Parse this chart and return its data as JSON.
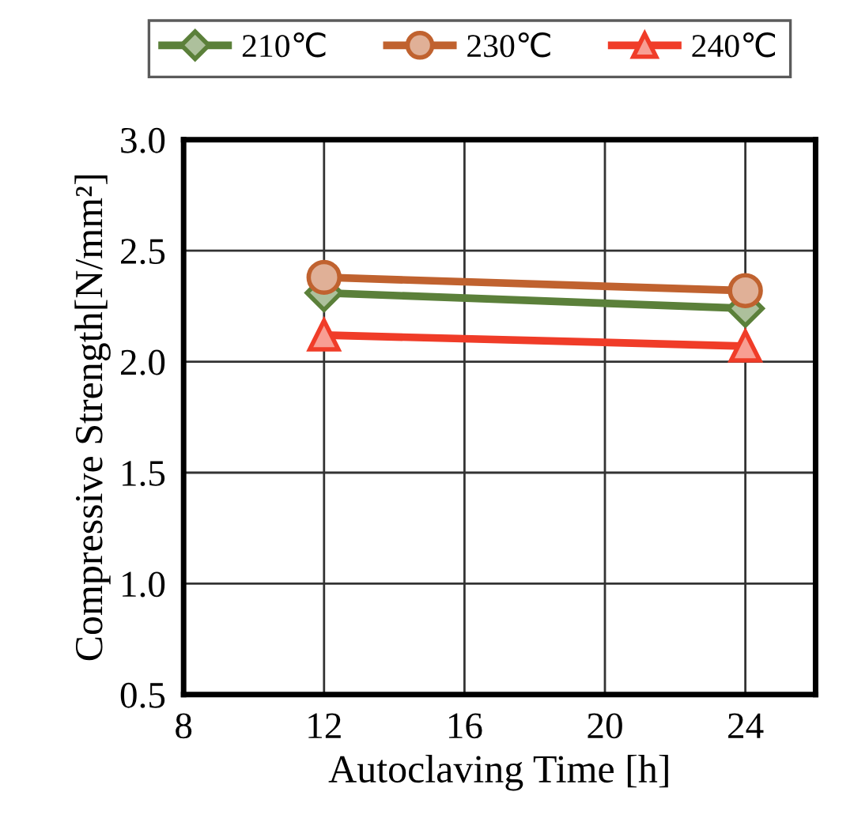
{
  "chart_data": {
    "type": "line",
    "xlabel": "Autoclaving Time [h]",
    "ylabel": "Compressive Strength[N/mm²]",
    "x": [
      12,
      24
    ],
    "series": [
      {
        "name": "210℃",
        "color": "#5b803a",
        "marker": "diamond",
        "values": [
          2.31,
          2.24
        ]
      },
      {
        "name": "230℃",
        "color": "#c0622f",
        "marker": "circle",
        "values": [
          2.38,
          2.32
        ]
      },
      {
        "name": "240℃",
        "color": "#f03c28",
        "marker": "triangle",
        "values": [
          2.12,
          2.07
        ]
      }
    ],
    "xlim": [
      8,
      26
    ],
    "xticks": [
      8,
      12,
      16,
      20,
      24
    ],
    "ylim": [
      0.5,
      3.0
    ],
    "yticks": [
      {
        "value": 0.5,
        "label": "0.5"
      },
      {
        "value": 1.0,
        "label": "1.0"
      },
      {
        "value": 1.5,
        "label": "1.5"
      },
      {
        "value": 2.0,
        "label": "2.0"
      },
      {
        "value": 2.5,
        "label": "2.5"
      },
      {
        "value": 3.0,
        "label": "3.0"
      }
    ],
    "grid": true,
    "legend": "top",
    "line_style": "solid"
  }
}
